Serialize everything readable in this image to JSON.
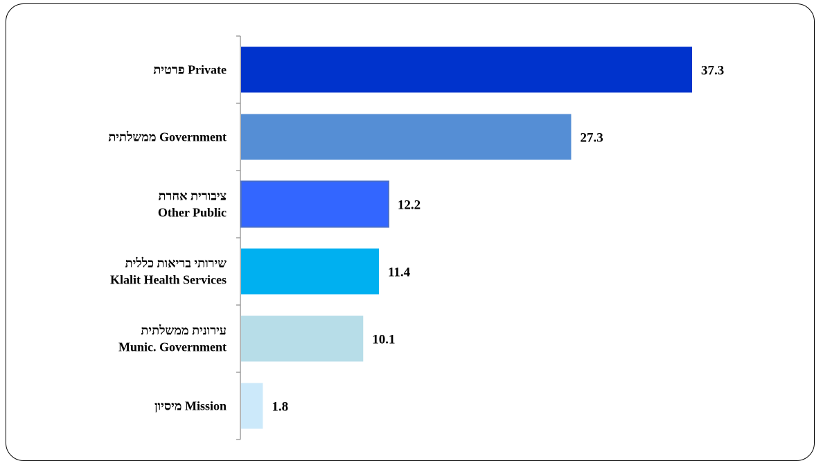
{
  "chart_data": {
    "type": "bar",
    "orientation": "horizontal",
    "categories": [
      [
        "פרטית  Private"
      ],
      [
        "ממשלתית Government"
      ],
      [
        "ציבורית אחרת",
        "Other  Public"
      ],
      [
        "שירותי בריאות כללית",
        "Klalit Health Services"
      ],
      [
        "עירונית ממשלתית",
        "Munic. Government"
      ],
      [
        "מיסיון Mission"
      ]
    ],
    "values": [
      37.3,
      27.3,
      12.2,
      11.4,
      10.1,
      1.8
    ],
    "value_labels": [
      "37.3",
      "27.3",
      "12.2",
      "11.4",
      "10.1",
      "1.8"
    ],
    "colors": [
      "#0033CC",
      "#558ED5",
      "#3366FF",
      "#00B0F0",
      "#B7DDE8",
      "#CCE9FA"
    ],
    "xlim": [
      0,
      40
    ],
    "grid": false,
    "legend": "none"
  }
}
